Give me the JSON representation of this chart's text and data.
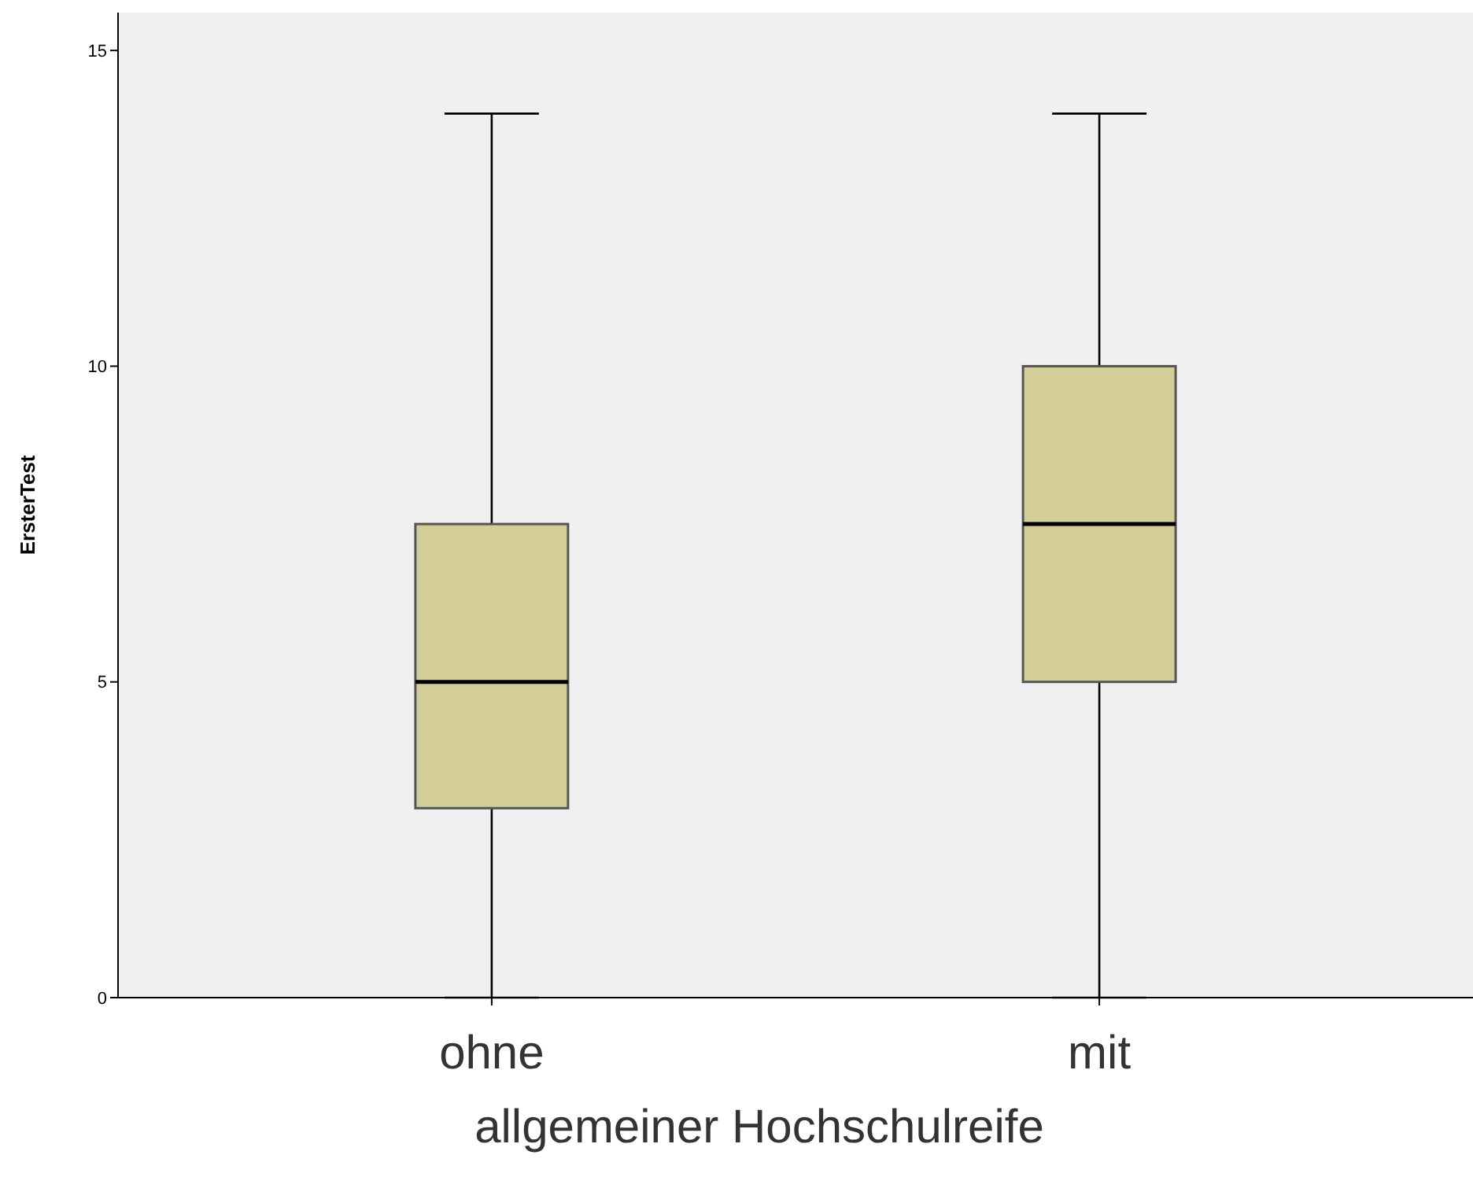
{
  "chart_data": {
    "type": "box",
    "xlabel": "allgemeiner Hochschulreife",
    "ylabel": "ErsterTest",
    "categories": [
      "ohne",
      "mit"
    ],
    "boxes": [
      {
        "low": 0,
        "q1": 3,
        "median": 5,
        "q3": 7.5,
        "high": 14
      },
      {
        "low": 0,
        "q1": 5,
        "median": 7.5,
        "q3": 10,
        "high": 14
      }
    ],
    "color": "#d3ce97",
    "ylim": [
      0,
      15.6
    ],
    "yticks": [
      0,
      5,
      10,
      15
    ]
  }
}
